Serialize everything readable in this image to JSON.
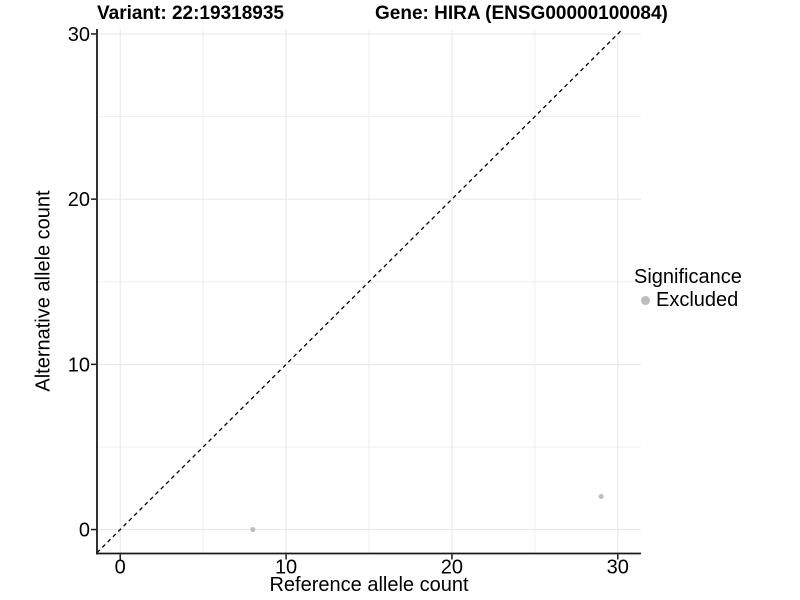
{
  "chart_data": {
    "type": "scatter",
    "variant_title": "Variant: 22:19318935",
    "gene_title": "Gene: HIRA (ENSG00000100084)",
    "xlabel": "Reference allele count",
    "ylabel": "Alternative allele count",
    "x_ticks": [
      0,
      10,
      20,
      30
    ],
    "y_ticks": [
      0,
      10,
      20,
      30
    ],
    "xlim": [
      -1.4,
      31.4
    ],
    "ylim": [
      -1.45,
      30.3
    ],
    "grid": true,
    "legend_position": "right",
    "legend_title": "Significance",
    "series": [
      {
        "name": "Excluded",
        "color": "#bcbcbc",
        "points": [
          {
            "x": 8,
            "y": 0
          },
          {
            "x": 29,
            "y": 2
          }
        ]
      }
    ],
    "reference_line": {
      "slope": 1,
      "intercept": 0,
      "style": "dashed",
      "color": "#000000"
    },
    "colors": {
      "grid_major": "#e7e7e7",
      "grid_minor": "#efefef",
      "axis": "#1a1a1a",
      "text": "#000000",
      "panel_background": "#ffffff"
    }
  }
}
